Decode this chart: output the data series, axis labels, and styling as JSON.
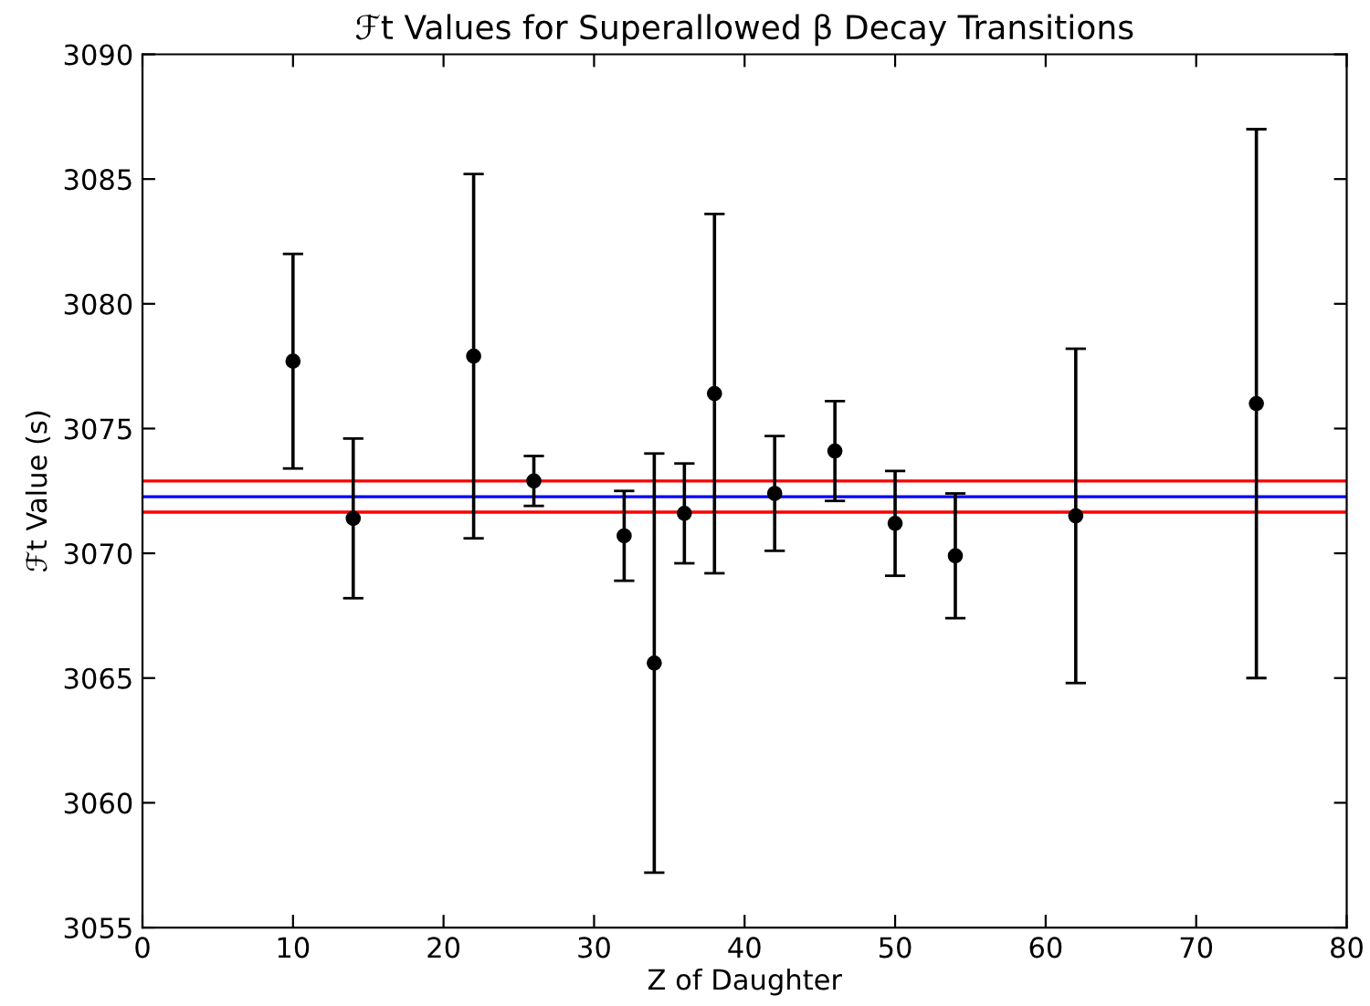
{
  "chart_data": {
    "type": "scatter",
    "title": "ℱt Values for Superallowed β Decay Transitions",
    "xlabel": "Z of Daughter",
    "ylabel": "ℱt Value (s)",
    "x": [
      10,
      14,
      22,
      26,
      32,
      34,
      36,
      38,
      42,
      46,
      50,
      54,
      62,
      74
    ],
    "series": [
      {
        "color": "#000000",
        "values": [
          3077.7,
          3071.4,
          3077.9,
          3072.9,
          3070.7,
          3065.6,
          3071.6,
          3076.4,
          3072.4,
          3074.1,
          3071.2,
          3069.9,
          3071.5,
          3076.0
        ],
        "errors": [
          4.3,
          3.2,
          7.3,
          1.0,
          1.8,
          8.4,
          2.0,
          7.2,
          2.3,
          2.0,
          2.1,
          2.5,
          6.7,
          11.0
        ]
      }
    ],
    "marker": "circle",
    "grid": false,
    "legend": false,
    "ref_lines": [
      {
        "axis": "y",
        "value": 3072.27,
        "color": "#0000ff"
      },
      {
        "axis": "y",
        "value": 3072.9,
        "color": "#ff0000"
      },
      {
        "axis": "y",
        "value": 3071.65,
        "color": "#ff0000"
      }
    ],
    "xlim": [
      0,
      80
    ],
    "xticks": [
      0,
      10,
      20,
      30,
      40,
      50,
      60,
      70,
      80
    ],
    "ylim": [
      3055,
      3090
    ],
    "yticks": [
      3055,
      3060,
      3065,
      3070,
      3075,
      3080,
      3085,
      3090
    ]
  }
}
